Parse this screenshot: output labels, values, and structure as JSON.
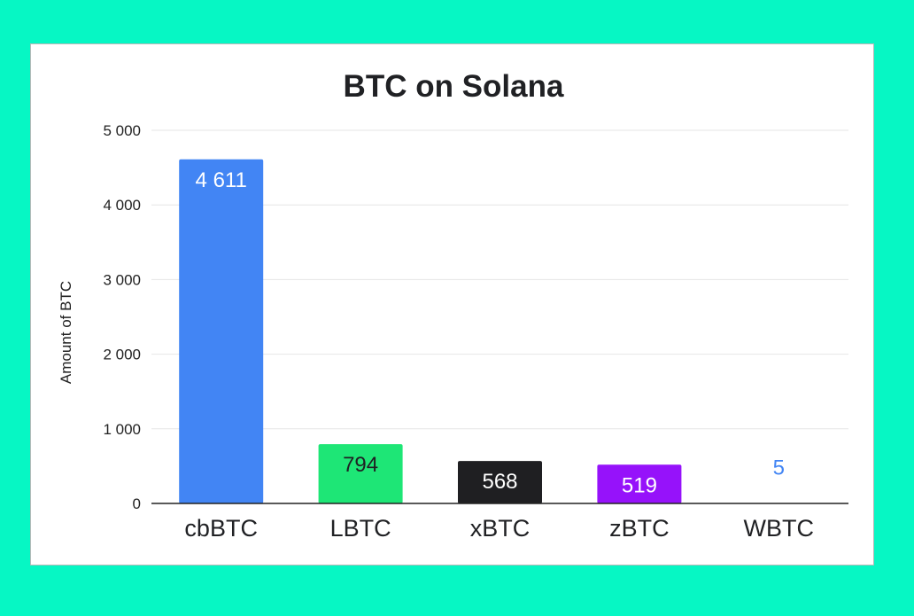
{
  "chart_data": {
    "type": "bar",
    "title": "BTC on Solana",
    "xlabel": "",
    "ylabel": "Amount of BTC",
    "ylim": [
      0,
      5000
    ],
    "yticks": [
      0,
      1000,
      2000,
      3000,
      4000,
      5000
    ],
    "ytick_labels": [
      "0",
      "1 000",
      "2 000",
      "3 000",
      "4 000",
      "5 000"
    ],
    "categories": [
      "cbBTC",
      "LBTC",
      "xBTC",
      "zBTC",
      "WBTC"
    ],
    "values": [
      4611,
      794,
      568,
      519,
      5
    ],
    "value_labels": [
      "4 611",
      "794",
      "568",
      "519",
      "5"
    ],
    "colors": [
      "#4285f4",
      "#1ee676",
      "#1f1f22",
      "#9612fa",
      "#4285f4"
    ],
    "label_colors": [
      "#ffffff",
      "#202124",
      "#ffffff",
      "#ffffff",
      "#4285f4"
    ],
    "grid": true,
    "legend": "none"
  },
  "colors": {
    "background": "#06f7c4",
    "card": "#ffffff",
    "gridline": "#e6e6e6",
    "axis": "#222222"
  }
}
